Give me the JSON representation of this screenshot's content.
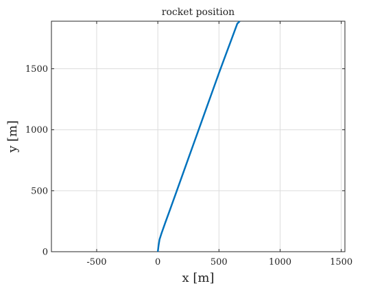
{
  "chart_data": {
    "type": "line",
    "title": "rocket position",
    "xlabel": "x [m]",
    "ylabel": "y [m]",
    "xlim": [
      -870,
      1530
    ],
    "ylim": [
      0,
      1890
    ],
    "grid": true,
    "x_ticks": [
      -500,
      0,
      500,
      1000,
      1500
    ],
    "y_ticks": [
      0,
      500,
      1000,
      1500
    ],
    "x_tick_labels": [
      "-500",
      "0",
      "500",
      "1000",
      "1500"
    ],
    "y_tick_labels": [
      "0",
      "500",
      "1000",
      "1500"
    ],
    "series": [
      {
        "name": "",
        "color": "#0072BD",
        "x": [
          0,
          6,
          14,
          30,
          60,
          100,
          150,
          200,
          250,
          300,
          350,
          400,
          450,
          500,
          550,
          600,
          650,
          670
        ],
        "y": [
          0,
          50,
          100,
          150,
          235,
          345,
          485,
          625,
          765,
          905,
          1045,
          1185,
          1325,
          1465,
          1600,
          1735,
          1870,
          1890
        ]
      }
    ],
    "colors": {
      "axis": "#262626",
      "grid": "#dcdcdc",
      "line": "#0072BD"
    }
  }
}
